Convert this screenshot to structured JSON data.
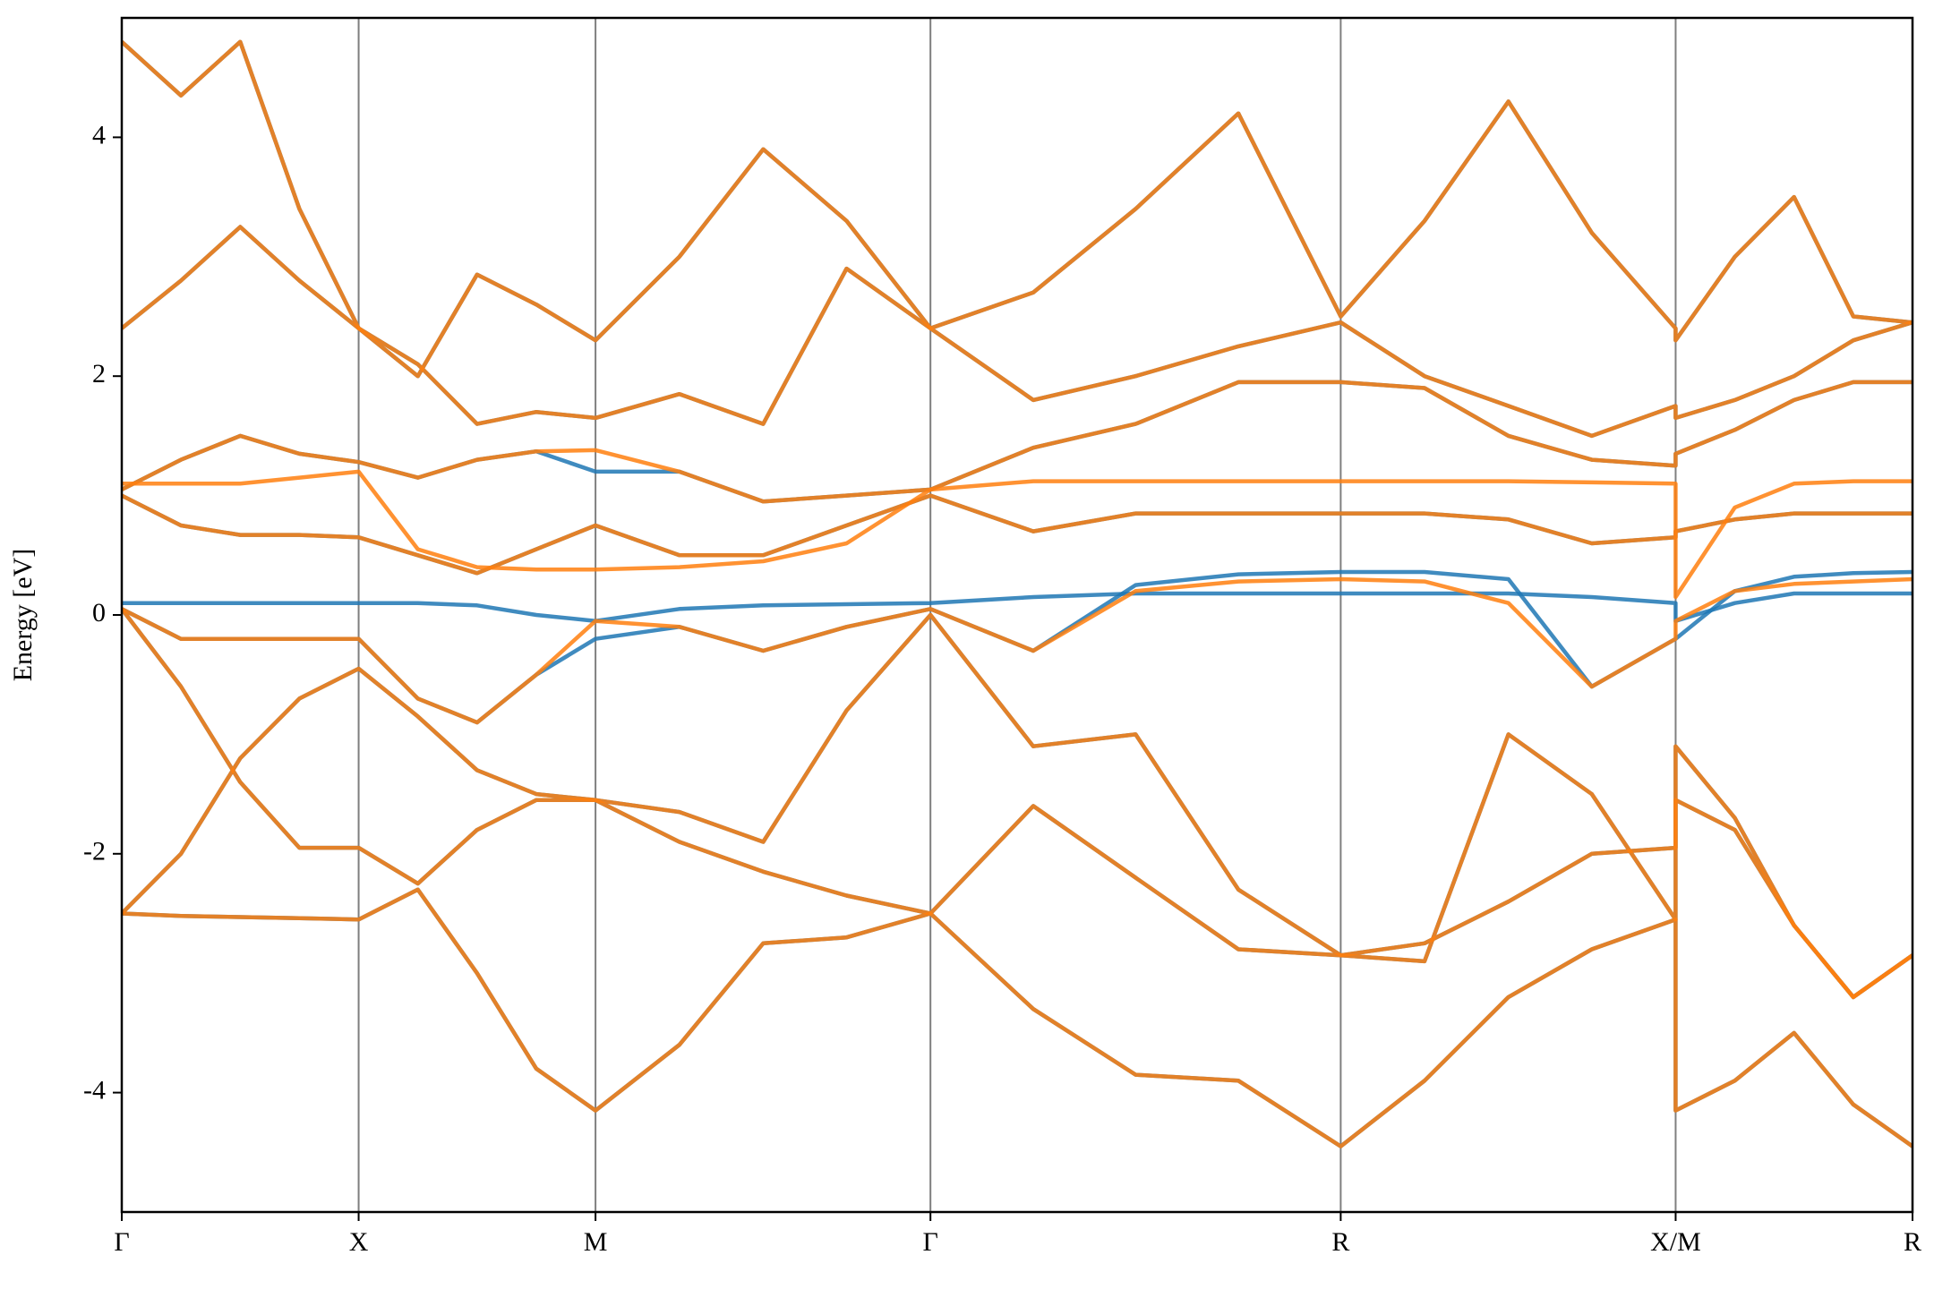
{
  "chart_data": {
    "type": "line",
    "ylabel": "Energy [eV]",
    "x": [
      0,
      0.125,
      0.25,
      0.375,
      0.5,
      0.625,
      0.75,
      0.875,
      1.0,
      1.177,
      1.354,
      1.53,
      1.707,
      1.924,
      2.14,
      2.357,
      2.573,
      2.75,
      2.927,
      3.103,
      3.28,
      3.28,
      3.405,
      3.53,
      3.655,
      3.78
    ],
    "xlim": [
      0,
      3.78
    ],
    "xticks": [
      {
        "value": 0,
        "label": "Γ"
      },
      {
        "value": 0.5,
        "label": "X"
      },
      {
        "value": 1.0,
        "label": "M"
      },
      {
        "value": 1.707,
        "label": "Γ"
      },
      {
        "value": 2.573,
        "label": "R"
      },
      {
        "value": 3.28,
        "label": "X/M"
      },
      {
        "value": 3.78,
        "label": "R"
      }
    ],
    "ylim": [
      -5,
      5
    ],
    "yticks": [
      -4,
      -2,
      0,
      2,
      4
    ],
    "grid": "x",
    "series": [
      {
        "color": "#1f77b4",
        "values": [
          -2.5,
          -2.52,
          -2.53,
          -2.54,
          -2.55,
          -2.3,
          -3.0,
          -3.8,
          -4.15,
          -3.6,
          -2.75,
          -2.7,
          -2.5,
          -3.3,
          -3.85,
          -3.9,
          -4.45,
          -3.9,
          -3.2,
          -2.8,
          -2.55,
          -4.15,
          -3.9,
          -3.5,
          -4.1,
          -4.45
        ]
      },
      {
        "color": "#1f77b4",
        "values": [
          -2.5,
          -2.0,
          -1.2,
          -0.7,
          -0.45,
          -0.85,
          -1.3,
          -1.5,
          -1.55,
          -1.9,
          -2.15,
          -2.35,
          -2.5,
          -1.6,
          -2.2,
          -2.8,
          -2.85,
          -2.75,
          -2.4,
          -2.0,
          -1.95,
          -1.55,
          -1.8,
          -2.6,
          -3.2,
          -2.85
        ]
      },
      {
        "color": "#1f77b4",
        "values": [
          0.05,
          -0.6,
          -1.4,
          -1.95,
          -1.95,
          -2.25,
          -1.8,
          -1.55,
          -1.55,
          -1.65,
          -1.9,
          -0.8,
          0.0,
          -1.1,
          -1.0,
          -2.3,
          -2.85,
          -2.9,
          -1.0,
          -1.5,
          -2.55,
          -1.1,
          -1.7,
          -2.6,
          -3.2,
          -2.85
        ]
      },
      {
        "color": "#1f77b4",
        "values": [
          0.05,
          -0.2,
          -0.2,
          -0.2,
          -0.2,
          -0.7,
          -0.9,
          -0.5,
          -0.2,
          -0.1,
          -0.3,
          -0.1,
          0.05,
          -0.3,
          0.25,
          0.34,
          0.36,
          0.36,
          0.3,
          -0.6,
          -0.2,
          -0.2,
          0.2,
          0.32,
          0.35,
          0.36
        ]
      },
      {
        "color": "#1f77b4",
        "values": [
          1.0,
          0.75,
          0.67,
          0.67,
          0.65,
          0.5,
          0.35,
          0.55,
          0.75,
          0.5,
          0.5,
          0.75,
          1.0,
          0.7,
          0.85,
          0.85,
          0.85,
          0.85,
          0.8,
          0.6,
          0.65,
          0.7,
          0.8,
          0.85,
          0.85,
          0.85
        ]
      },
      {
        "color": "#1f77b4",
        "values": [
          1.05,
          1.3,
          1.5,
          1.35,
          1.28,
          1.15,
          1.3,
          1.37,
          1.2,
          1.2,
          0.95,
          1.0,
          1.05,
          1.4,
          1.6,
          1.95,
          1.95,
          1.9,
          1.5,
          1.3,
          1.25,
          1.35,
          1.55,
          1.8,
          1.95,
          1.95
        ]
      },
      {
        "color": "#1f77b4",
        "values": [
          2.4,
          2.8,
          3.25,
          2.8,
          2.4,
          2.1,
          1.6,
          1.7,
          1.65,
          1.85,
          1.6,
          2.9,
          2.4,
          1.8,
          2.0,
          2.25,
          2.45,
          2.0,
          1.75,
          1.5,
          1.75,
          1.65,
          1.8,
          2.0,
          2.3,
          2.45
        ]
      },
      {
        "color": "#1f77b4",
        "values": [
          4.8,
          4.35,
          4.8,
          3.4,
          2.4,
          2.0,
          2.85,
          2.6,
          2.3,
          3.0,
          3.9,
          3.3,
          2.4,
          2.7,
          3.4,
          4.2,
          2.5,
          3.3,
          4.3,
          3.2,
          2.4,
          2.3,
          3.0,
          3.5,
          2.5,
          2.45
        ]
      },
      {
        "color": "#1f77b4",
        "values": [
          0.1,
          0.1,
          0.1,
          0.1,
          0.1,
          0.1,
          0.08,
          0.0,
          -0.05,
          0.05,
          0.08,
          0.09,
          0.1,
          0.15,
          0.18,
          0.18,
          0.18,
          0.18,
          0.18,
          0.15,
          0.1,
          -0.05,
          0.1,
          0.18,
          0.18,
          0.18
        ]
      },
      {
        "color": "#ff7f0e",
        "values": [
          -2.5,
          -2.52,
          -2.53,
          -2.54,
          -2.55,
          -2.3,
          -3.0,
          -3.8,
          -4.15,
          -3.6,
          -2.75,
          -2.7,
          -2.5,
          -3.3,
          -3.85,
          -3.9,
          -4.45,
          -3.9,
          -3.2,
          -2.8,
          -2.55,
          -4.15,
          -3.9,
          -3.5,
          -4.1,
          -4.45
        ]
      },
      {
        "color": "#ff7f0e",
        "values": [
          -2.5,
          -2.0,
          -1.2,
          -0.7,
          -0.45,
          -0.85,
          -1.3,
          -1.5,
          -1.55,
          -1.9,
          -2.15,
          -2.35,
          -2.5,
          -1.6,
          -2.2,
          -2.8,
          -2.85,
          -2.75,
          -2.4,
          -2.0,
          -1.95,
          -1.55,
          -1.8,
          -2.6,
          -3.2,
          -2.85
        ]
      },
      {
        "color": "#ff7f0e",
        "values": [
          0.05,
          -0.6,
          -1.4,
          -1.95,
          -1.95,
          -2.25,
          -1.8,
          -1.55,
          -1.55,
          -1.65,
          -1.9,
          -0.8,
          0.0,
          -1.1,
          -1.0,
          -2.3,
          -2.85,
          -2.9,
          -1.0,
          -1.5,
          -2.55,
          -1.1,
          -1.7,
          -2.6,
          -3.2,
          -2.85
        ]
      },
      {
        "color": "#ff7f0e",
        "values": [
          0.05,
          -0.2,
          -0.2,
          -0.2,
          -0.2,
          -0.7,
          -0.9,
          -0.5,
          -0.05,
          -0.1,
          -0.3,
          -0.1,
          0.05,
          -0.3,
          0.2,
          0.28,
          0.3,
          0.28,
          0.1,
          -0.6,
          -0.2,
          -0.05,
          0.2,
          0.26,
          0.28,
          0.3
        ]
      },
      {
        "color": "#ff7f0e",
        "values": [
          1.0,
          0.75,
          0.67,
          0.67,
          0.65,
          0.5,
          0.35,
          0.55,
          0.75,
          0.5,
          0.5,
          0.75,
          1.0,
          0.7,
          0.85,
          0.85,
          0.85,
          0.85,
          0.8,
          0.6,
          0.65,
          0.7,
          0.8,
          0.85,
          0.85,
          0.85
        ]
      },
      {
        "color": "#ff7f0e",
        "values": [
          1.05,
          1.3,
          1.5,
          1.35,
          1.28,
          1.15,
          1.3,
          1.37,
          1.38,
          1.2,
          0.95,
          1.0,
          1.05,
          1.4,
          1.6,
          1.95,
          1.95,
          1.9,
          1.5,
          1.3,
          1.25,
          1.35,
          1.55,
          1.8,
          1.95,
          1.95
        ]
      },
      {
        "color": "#ff7f0e",
        "values": [
          2.4,
          2.8,
          3.25,
          2.8,
          2.4,
          2.1,
          1.6,
          1.7,
          1.65,
          1.85,
          1.6,
          2.9,
          2.4,
          1.8,
          2.0,
          2.25,
          2.45,
          2.0,
          1.75,
          1.5,
          1.75,
          1.65,
          1.8,
          2.0,
          2.3,
          2.45
        ]
      },
      {
        "color": "#ff7f0e",
        "values": [
          4.8,
          4.35,
          4.8,
          3.4,
          2.4,
          2.0,
          2.85,
          2.6,
          2.3,
          3.0,
          3.9,
          3.3,
          2.4,
          2.7,
          3.4,
          4.2,
          2.5,
          3.3,
          4.3,
          3.2,
          2.4,
          2.3,
          3.0,
          3.5,
          2.5,
          2.45
        ]
      },
      {
        "color": "#ff7f0e",
        "values": [
          1.1,
          1.1,
          1.1,
          1.15,
          1.2,
          0.55,
          0.4,
          0.38,
          0.38,
          0.4,
          0.45,
          0.6,
          1.05,
          1.12,
          1.12,
          1.12,
          1.12,
          1.12,
          1.12,
          1.11,
          1.1,
          0.15,
          0.9,
          1.1,
          1.12,
          1.12
        ]
      }
    ]
  }
}
